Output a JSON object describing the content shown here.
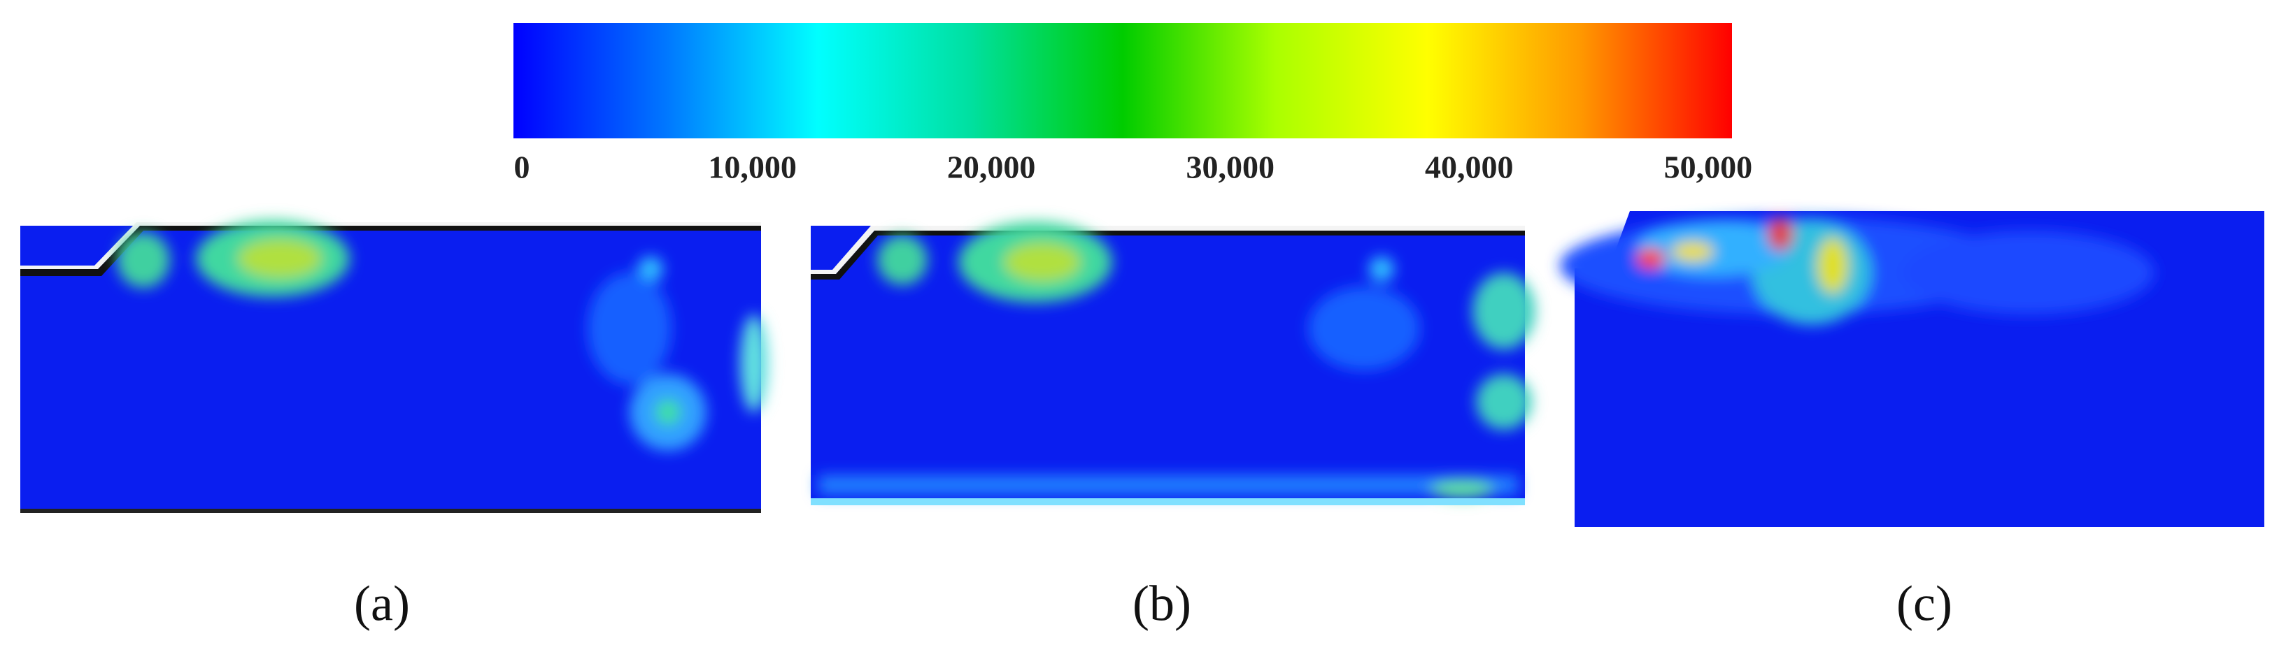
{
  "chart_data": {
    "type": "colorbar",
    "colors": [
      "#0000ff",
      "#0077ff",
      "#00ffff",
      "#00e0a0",
      "#00cc00",
      "#aaff00",
      "#ffff00",
      "#ff9900",
      "#ff0000"
    ],
    "xlim": [
      0,
      51000
    ],
    "xticks": [
      0,
      {
        "value": 10000,
        "label": "10,000"
      },
      {
        "value": 20000,
        "label": "20,000"
      },
      {
        "value": 30000,
        "label": "30,000"
      },
      {
        "value": 40000,
        "label": "40,000"
      },
      {
        "value": 50000,
        "label": "50,000"
      }
    ],
    "panels": [
      "(a)",
      "(b)",
      "(c)"
    ]
  }
}
